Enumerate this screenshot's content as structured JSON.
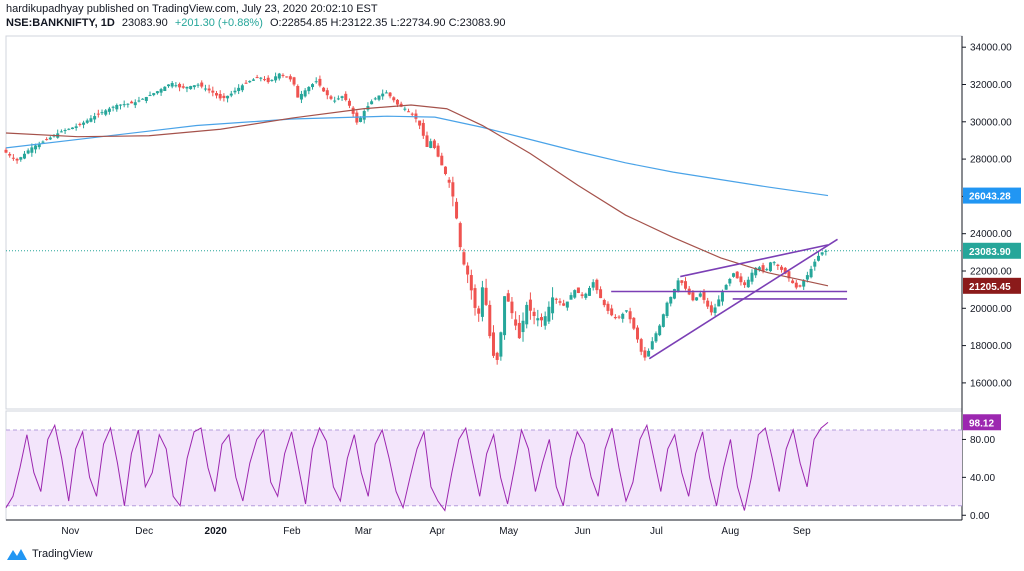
{
  "header": {
    "line1": "hardikupadhyay published on TradingView.com, July 23, 2020 20:02:10 EST",
    "symbol": "NSE:BANKNIFTY, 1D",
    "last": "23083.90",
    "change": "+201.30 (+0.88%)",
    "ohlc_o": "O:22854.85",
    "ohlc_h": "H:23122.35",
    "ohlc_l": "L:22734.90",
    "ohlc_c": "C:23083.90"
  },
  "brand": {
    "name": "TradingView"
  },
  "colors": {
    "up": "#26a69a",
    "down": "#ef5350",
    "ma_fast": "#a5524b",
    "ma_slow": "#4aa3e8",
    "rsi": "#9c27b0",
    "rsi_band": "#f3e5fb",
    "trend": "#7b3fb5"
  },
  "chart_data": {
    "type": "candlestick",
    "x_ticks": [
      "Nov",
      "Dec",
      "2020",
      "Feb",
      "Mar",
      "Apr",
      "May",
      "Jun",
      "Jul",
      "Aug",
      "Sep"
    ],
    "price_axis": {
      "ticks": [
        "34000.00",
        "32000.00",
        "30000.00",
        "28000.00",
        "26000.00",
        "24000.00",
        "22000.00",
        "20000.00",
        "18000.00",
        "16000.00"
      ],
      "range": [
        14600,
        34600
      ]
    },
    "rsi_axis": {
      "ticks": [
        "80.00",
        "40.00",
        "0.00"
      ],
      "range": [
        -5,
        110
      ],
      "band": [
        10,
        90
      ]
    },
    "price_badges": [
      {
        "label": "26043.28",
        "value": 26043.28,
        "color": "#2196f3"
      },
      {
        "label": "23083.90",
        "value": 23083.9,
        "color": "#26a69a"
      },
      {
        "label": "21205.45",
        "value": 21205.45,
        "color": "#8b1a1a"
      }
    ],
    "rsi_badge": {
      "label": "98.12",
      "value": 98.12,
      "color": "#9c27b0"
    },
    "price_path": [
      [
        0,
        28500
      ],
      [
        6,
        27900
      ],
      [
        12,
        28600
      ],
      [
        18,
        29000
      ],
      [
        25,
        29500
      ],
      [
        32,
        29800
      ],
      [
        40,
        30400
      ],
      [
        48,
        30900
      ],
      [
        55,
        31000
      ],
      [
        60,
        31300
      ],
      [
        66,
        31700
      ],
      [
        71,
        32100
      ],
      [
        75,
        31800
      ],
      [
        82,
        32000
      ],
      [
        88,
        31600
      ],
      [
        92,
        31200
      ],
      [
        96,
        31500
      ],
      [
        100,
        31900
      ],
      [
        104,
        32200
      ],
      [
        108,
        32400
      ],
      [
        112,
        32100
      ],
      [
        116,
        32600
      ],
      [
        122,
        32200
      ],
      [
        124,
        31300
      ],
      [
        128,
        31800
      ],
      [
        132,
        32200
      ],
      [
        135,
        31600
      ],
      [
        139,
        31100
      ],
      [
        143,
        31400
      ],
      [
        146,
        30800
      ],
      [
        149,
        29900
      ],
      [
        152,
        30600
      ],
      [
        155,
        31100
      ],
      [
        158,
        31400
      ],
      [
        161,
        31600
      ],
      [
        164,
        31200
      ],
      [
        166,
        30900
      ],
      [
        169,
        30700
      ],
      [
        173,
        30300
      ],
      [
        176,
        29600
      ],
      [
        178,
        28600
      ],
      [
        180,
        29000
      ],
      [
        184,
        27800
      ],
      [
        188,
        26600
      ],
      [
        190,
        25500
      ],
      [
        192,
        23400
      ],
      [
        194,
        22200
      ],
      [
        196,
        21600
      ],
      [
        198,
        20100
      ],
      [
        200,
        19700
      ],
      [
        202,
        21600
      ],
      [
        204,
        18900
      ],
      [
        206,
        17600
      ],
      [
        207,
        16600
      ],
      [
        209,
        18400
      ],
      [
        211,
        20900
      ],
      [
        214,
        19700
      ],
      [
        217,
        18400
      ],
      [
        220,
        20200
      ],
      [
        223,
        19600
      ],
      [
        227,
        19300
      ],
      [
        231,
        20600
      ],
      [
        236,
        20100
      ],
      [
        240,
        21000
      ],
      [
        244,
        20600
      ],
      [
        248,
        21400
      ],
      [
        252,
        20300
      ],
      [
        255,
        19700
      ],
      [
        258,
        19400
      ],
      [
        262,
        19900
      ],
      [
        266,
        18600
      ],
      [
        268,
        17700
      ],
      [
        270,
        17300
      ],
      [
        273,
        18300
      ],
      [
        276,
        19100
      ],
      [
        279,
        20300
      ],
      [
        281,
        20700
      ],
      [
        284,
        21600
      ],
      [
        287,
        21000
      ],
      [
        290,
        20400
      ],
      [
        293,
        20800
      ],
      [
        296,
        20100
      ],
      [
        298,
        19700
      ],
      [
        300,
        20300
      ],
      [
        304,
        21300
      ],
      [
        307,
        21900
      ],
      [
        309,
        21500
      ],
      [
        312,
        21200
      ],
      [
        314,
        21800
      ],
      [
        317,
        22300
      ],
      [
        320,
        21900
      ],
      [
        323,
        22600
      ],
      [
        326,
        22200
      ],
      [
        329,
        21800
      ],
      [
        332,
        21300
      ],
      [
        334,
        21000
      ],
      [
        336,
        21400
      ],
      [
        339,
        22000
      ],
      [
        341,
        22500
      ],
      [
        343,
        22900
      ],
      [
        345,
        23083.9
      ]
    ],
    "ma_slow": [
      [
        0,
        28600
      ],
      [
        40,
        29200
      ],
      [
        80,
        29800
      ],
      [
        120,
        30150
      ],
      [
        160,
        30300
      ],
      [
        180,
        30250
      ],
      [
        200,
        29700
      ],
      [
        220,
        29050
      ],
      [
        240,
        28400
      ],
      [
        260,
        27800
      ],
      [
        280,
        27300
      ],
      [
        300,
        26900
      ],
      [
        320,
        26500
      ],
      [
        345,
        26043.28
      ]
    ],
    "ma_fast": [
      [
        0,
        29400
      ],
      [
        30,
        29200
      ],
      [
        60,
        29250
      ],
      [
        90,
        29600
      ],
      [
        120,
        30200
      ],
      [
        150,
        30700
      ],
      [
        170,
        30900
      ],
      [
        185,
        30700
      ],
      [
        200,
        29800
      ],
      [
        220,
        28300
      ],
      [
        240,
        26600
      ],
      [
        260,
        25000
      ],
      [
        280,
        23800
      ],
      [
        300,
        22700
      ],
      [
        320,
        21900
      ],
      [
        345,
        21205.45
      ]
    ],
    "trendlines": [
      [
        [
          270,
          17300
        ],
        [
          349,
          23700
        ]
      ],
      [
        [
          283,
          21700
        ],
        [
          345,
          23400
        ]
      ],
      [
        [
          254,
          20900
        ],
        [
          353,
          20900
        ]
      ],
      [
        [
          305,
          20500
        ],
        [
          353,
          20500
        ]
      ]
    ],
    "rsi_values": [
      8,
      20,
      50,
      85,
      45,
      25,
      80,
      95,
      60,
      15,
      70,
      88,
      40,
      20,
      75,
      92,
      55,
      10,
      65,
      90,
      30,
      45,
      85,
      70,
      20,
      10,
      60,
      88,
      92,
      50,
      25,
      75,
      85,
      40,
      15,
      55,
      80,
      90,
      35,
      20,
      65,
      88,
      50,
      12,
      70,
      92,
      78,
      30,
      15,
      60,
      85,
      45,
      20,
      75,
      90,
      60,
      25,
      8,
      40,
      70,
      88,
      30,
      15,
      5,
      45,
      80,
      92,
      55,
      20,
      65,
      85,
      40,
      12,
      50,
      90,
      70,
      25,
      55,
      80,
      30,
      10,
      60,
      88,
      75,
      40,
      20,
      70,
      92,
      50,
      15,
      35,
      80,
      95,
      60,
      25,
      70,
      85,
      45,
      20,
      65,
      88,
      40,
      10,
      50,
      80,
      30,
      5,
      40,
      85,
      92,
      60,
      25,
      70,
      90,
      55,
      30,
      80,
      92,
      98
    ]
  }
}
